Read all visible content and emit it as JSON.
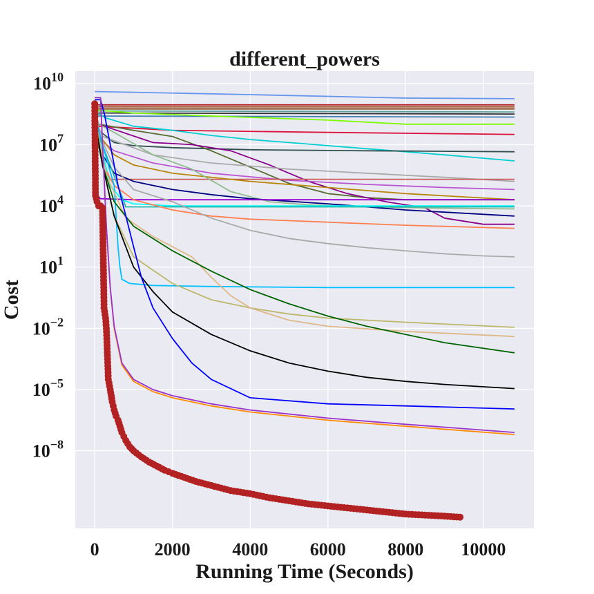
{
  "chart_data": {
    "type": "line",
    "title": "different_powers",
    "xlabel": "Running Time (Seconds)",
    "ylabel": "Cost",
    "xlim": [
      -500,
      11300
    ],
    "ylim_log10": [
      -11.8,
      10.6
    ],
    "yscale": "log",
    "grid": true,
    "x_ticks": [
      0,
      2000,
      4000,
      6000,
      8000,
      10000
    ],
    "x_tick_labels": [
      "0",
      "2000",
      "4000",
      "6000",
      "8000",
      "10000"
    ],
    "y_ticks_log10": [
      10,
      7,
      4,
      1,
      -2,
      -5,
      -8
    ],
    "y_tick_labels": [
      {
        "base": "10",
        "exp": "10"
      },
      {
        "base": "10",
        "exp": "7"
      },
      {
        "base": "10",
        "exp": "4"
      },
      {
        "base": "10",
        "exp": "1"
      },
      {
        "base": "10",
        "exp": "−2"
      },
      {
        "base": "10",
        "exp": "−5"
      },
      {
        "base": "10",
        "exp": "−8"
      }
    ],
    "series": [
      {
        "color": "#6495ed",
        "x": [
          0,
          100,
          4000,
          8000,
          10800
        ],
        "log10y": [
          9.6,
          9.6,
          9.45,
          9.28,
          9.25
        ]
      },
      {
        "color": "#b22222",
        "x": [
          0,
          10800
        ],
        "log10y": [
          8.95,
          8.95
        ]
      },
      {
        "color": "#a0522d",
        "x": [
          0,
          10800
        ],
        "log10y": [
          8.85,
          8.85
        ]
      },
      {
        "color": "#8b4513",
        "x": [
          0,
          10800
        ],
        "log10y": [
          8.75,
          8.75
        ]
      },
      {
        "color": "#5f9ea0",
        "x": [
          0,
          10800
        ],
        "log10y": [
          8.65,
          8.6
        ]
      },
      {
        "color": "#333333",
        "x": [
          0,
          10800
        ],
        "log10y": [
          8.55,
          8.5
        ]
      },
      {
        "color": "#4682b4",
        "x": [
          0,
          10800
        ],
        "log10y": [
          8.4,
          8.35
        ]
      },
      {
        "color": "#7cfc00",
        "x": [
          0,
          1000,
          3000,
          6000,
          8000,
          10800
        ],
        "log10y": [
          8.7,
          8.55,
          8.4,
          8.2,
          8.0,
          8.0
        ]
      },
      {
        "color": "#dc143c",
        "x": [
          0,
          100,
          2000,
          6000,
          10800
        ],
        "log10y": [
          8.6,
          7.9,
          7.7,
          7.6,
          7.5
        ]
      },
      {
        "color": "#00ced1",
        "x": [
          0,
          300,
          1000,
          2000,
          3000,
          4000,
          5000,
          6000,
          7000,
          8000,
          9000,
          10800
        ],
        "log10y": [
          8.6,
          8.3,
          7.9,
          7.7,
          7.45,
          7.25,
          7.1,
          6.95,
          6.8,
          6.65,
          6.5,
          6.2
        ]
      },
      {
        "color": "#2f4f4f",
        "x": [
          0,
          100,
          500,
          1000,
          2000,
          4000,
          7000,
          10800
        ],
        "log10y": [
          8.8,
          7.7,
          7.1,
          6.95,
          6.85,
          6.75,
          6.7,
          6.65
        ]
      },
      {
        "color": "#556b2f",
        "x": [
          0,
          100,
          1000,
          2000,
          3000,
          4000,
          5000,
          6000,
          7000,
          8000,
          10800
        ],
        "log10y": [
          8.5,
          8.0,
          7.7,
          7.4,
          6.7,
          5.9,
          5.1,
          4.6,
          4.4,
          4.3,
          4.3
        ]
      },
      {
        "color": "#8b008b",
        "x": [
          0,
          100,
          1500,
          2500,
          3500,
          4500,
          5500,
          6500,
          7500,
          8500,
          9000,
          10000,
          10800
        ],
        "log10y": [
          8.6,
          8.0,
          7.1,
          7.0,
          6.7,
          6.0,
          5.2,
          4.6,
          4.2,
          3.9,
          3.4,
          3.1,
          3.1
        ]
      },
      {
        "color": "#a9a9a9",
        "x": [
          0,
          200,
          1500,
          3000,
          5000,
          7000,
          9000,
          10800
        ],
        "log10y": [
          8.3,
          7.4,
          6.5,
          6.1,
          5.8,
          5.6,
          5.4,
          5.2
        ]
      },
      {
        "color": "#ba55d3",
        "x": [
          0,
          100,
          500,
          1500,
          3000,
          5000,
          7000,
          9000,
          10800
        ],
        "log10y": [
          8.0,
          7.3,
          6.7,
          6.1,
          5.6,
          5.25,
          5.05,
          4.9,
          4.8
        ]
      },
      {
        "color": "#cd5c5c",
        "x": [
          0,
          150,
          400,
          3000,
          7000,
          10800
        ],
        "log10y": [
          8.6,
          6.5,
          5.3,
          5.3,
          5.3,
          5.3
        ]
      },
      {
        "color": "#b8860b",
        "x": [
          0,
          100,
          500,
          1000,
          2000,
          4000,
          6000,
          8000,
          10800
        ],
        "log10y": [
          8.4,
          7.5,
          6.5,
          6.0,
          5.6,
          5.2,
          4.9,
          4.6,
          4.3
        ]
      },
      {
        "color": "#8fbc8f",
        "x": [
          0,
          100,
          500,
          1500,
          2500,
          3500,
          4500,
          5500,
          7000,
          8500,
          10800
        ],
        "log10y": [
          8.5,
          8.0,
          7.6,
          6.5,
          5.8,
          4.7,
          4.2,
          4.05,
          3.95,
          3.9,
          3.85
        ]
      },
      {
        "color": "#000080",
        "x": [
          0,
          200,
          500,
          1000,
          2000,
          3000,
          4000,
          6000,
          8000,
          10800
        ],
        "log10y": [
          8.4,
          6.5,
          5.6,
          5.2,
          4.8,
          4.55,
          4.35,
          4.1,
          3.8,
          3.5
        ]
      },
      {
        "color": "#9400d3",
        "x": [
          0,
          80,
          150,
          1000,
          5000,
          10800
        ],
        "log10y": [
          8.0,
          4.5,
          4.35,
          4.3,
          4.3,
          4.3
        ]
      },
      {
        "color": "#00ffff",
        "x": [
          0,
          400,
          700,
          1000,
          2000,
          5000,
          10800
        ],
        "log10y": [
          8.3,
          5.0,
          4.3,
          4.1,
          4.0,
          4.0,
          4.0
        ]
      },
      {
        "color": "#20b2aa",
        "x": [
          0,
          800,
          3000,
          7000,
          10800
        ],
        "log10y": [
          8.0,
          3.95,
          3.95,
          3.95,
          3.95
        ]
      },
      {
        "color": "#ff7f50",
        "x": [
          0,
          200,
          500,
          1000,
          2000,
          3000,
          4000,
          6000,
          8000,
          10800
        ],
        "log10y": [
          8.2,
          6.0,
          5.0,
          4.3,
          3.8,
          3.5,
          3.35,
          3.2,
          3.05,
          2.9
        ]
      },
      {
        "color": "#a9a9a9",
        "x": [
          0,
          500,
          1000,
          2000,
          3000,
          4000,
          5000,
          6000,
          7000,
          8000,
          9000,
          10000,
          10800
        ],
        "log10y": [
          8.0,
          5.9,
          4.8,
          4.2,
          3.4,
          2.8,
          2.4,
          2.15,
          1.95,
          1.8,
          1.65,
          1.55,
          1.5
        ]
      },
      {
        "color": "#00bfff",
        "x": [
          0,
          200,
          500,
          600,
          650,
          700,
          900,
          1500,
          3000,
          6000,
          10800
        ],
        "log10y": [
          8.5,
          7.0,
          5.0,
          2.0,
          1.0,
          0.4,
          0.2,
          0.1,
          0.05,
          0.0,
          0.0
        ]
      },
      {
        "color": "#bdb76b",
        "x": [
          0,
          200,
          500,
          1000,
          2000,
          3000,
          4000,
          5000,
          6000,
          8000,
          10800
        ],
        "log10y": [
          8.2,
          6.0,
          3.5,
          1.5,
          0.2,
          -0.6,
          -1.0,
          -1.3,
          -1.5,
          -1.7,
          -1.95
        ]
      },
      {
        "color": "#deb887",
        "x": [
          0,
          300,
          800,
          1500,
          2500,
          3000,
          3500,
          4000,
          5000,
          6000,
          8000,
          10800
        ],
        "log10y": [
          8.3,
          5.5,
          3.4,
          2.5,
          1.5,
          0.5,
          -0.4,
          -1.0,
          -1.6,
          -1.9,
          -2.15,
          -2.4
        ]
      },
      {
        "color": "#006400",
        "x": [
          0,
          200,
          500,
          1000,
          2000,
          3000,
          4000,
          5000,
          6000,
          7000,
          8000,
          9000,
          10800
        ],
        "log10y": [
          8.0,
          6.0,
          4.2,
          3.0,
          1.8,
          0.8,
          -0.1,
          -0.8,
          -1.4,
          -1.9,
          -2.3,
          -2.7,
          -3.2
        ]
      },
      {
        "color": "#000000",
        "x": [
          0,
          200,
          500,
          700,
          1000,
          1500,
          2000,
          3000,
          4000,
          5000,
          6000,
          7000,
          8000,
          9000,
          10800
        ],
        "log10y": [
          8.3,
          6.0,
          3.5,
          2.5,
          1.0,
          -0.2,
          -1.2,
          -2.3,
          -3.1,
          -3.7,
          -4.1,
          -4.4,
          -4.6,
          -4.75,
          -4.95
        ]
      },
      {
        "color": "#0000ff",
        "x": [
          0,
          150,
          250,
          400,
          600,
          800,
          1000,
          1200,
          1500,
          2000,
          2500,
          3000,
          4000,
          6000,
          8000,
          10800
        ],
        "log10y": [
          9.2,
          9.2,
          8.5,
          7.0,
          5.0,
          3.5,
          2.0,
          0.5,
          -1.0,
          -2.5,
          -3.7,
          -4.5,
          -5.4,
          -5.7,
          -5.8,
          -5.95
        ]
      },
      {
        "color": "#ff8c00",
        "x": [
          0,
          150,
          200,
          300,
          400,
          500,
          700,
          1000,
          1500,
          2000,
          3000,
          4000,
          6000,
          8000,
          10800
        ],
        "log10y": [
          9.3,
          9.3,
          7.0,
          3.0,
          0.0,
          -2.0,
          -3.8,
          -4.6,
          -5.1,
          -5.4,
          -5.8,
          -6.1,
          -6.5,
          -6.8,
          -7.2
        ]
      },
      {
        "color": "#9932cc",
        "x": [
          0,
          150,
          200,
          300,
          400,
          500,
          700,
          1000,
          1500,
          2000,
          3000,
          4000,
          6000,
          8000,
          10800
        ],
        "log10y": [
          9.3,
          9.3,
          7.0,
          3.0,
          0.0,
          -1.9,
          -3.7,
          -4.5,
          -5.0,
          -5.3,
          -5.7,
          -6.0,
          -6.4,
          -6.7,
          -7.1
        ]
      }
    ],
    "marker_series": {
      "color": "#b22222",
      "x": [
        0,
        20,
        60,
        100,
        130,
        150,
        200,
        240,
        280,
        300,
        320,
        350,
        400,
        450,
        500,
        550,
        600,
        650,
        700,
        750,
        800,
        900,
        1000,
        1200,
        1400,
        1600,
        1800,
        2000,
        2300,
        2600,
        3000,
        3500,
        4000,
        4500,
        5000,
        5500,
        6000,
        6500,
        7000,
        7500,
        8000,
        8500,
        9000,
        9400
      ],
      "log10y": [
        9.0,
        4.5,
        4.2,
        4.0,
        4.0,
        4.0,
        3.9,
        -1.0,
        -1.5,
        -2.0,
        -3.0,
        -4.5,
        -5.0,
        -5.6,
        -6.0,
        -6.3,
        -6.5,
        -6.8,
        -7.1,
        -7.3,
        -7.5,
        -7.8,
        -8.0,
        -8.3,
        -8.55,
        -8.75,
        -8.95,
        -9.1,
        -9.3,
        -9.5,
        -9.7,
        -9.95,
        -10.1,
        -10.3,
        -10.45,
        -10.6,
        -10.7,
        -10.8,
        -10.9,
        -11.0,
        -11.1,
        -11.15,
        -11.2,
        -11.25
      ]
    }
  }
}
